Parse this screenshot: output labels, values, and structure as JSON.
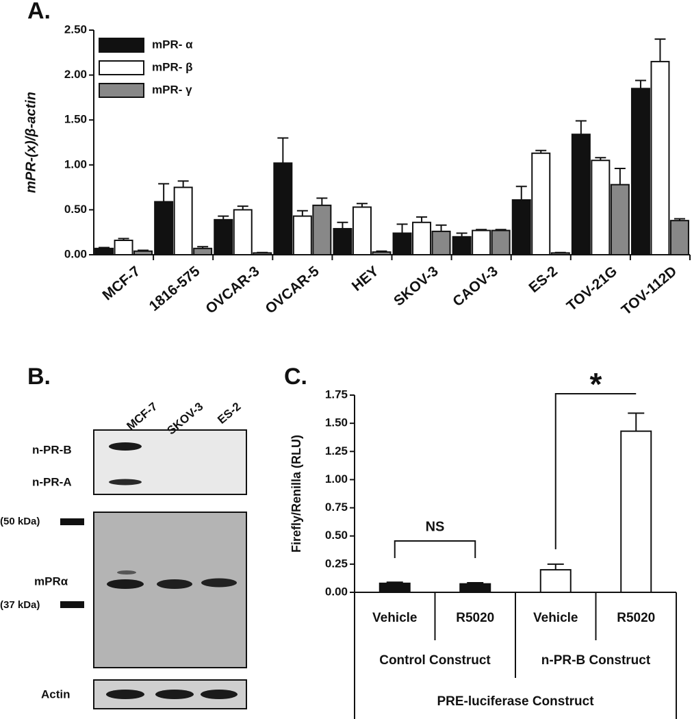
{
  "chart_data": [
    {
      "type": "bar",
      "panel": "A.",
      "y_label": "mPR-(x)/β-actin",
      "categories": [
        "MCF-7",
        "1816-575",
        "OVCAR-3",
        "OVCAR-5",
        "HEY",
        "SKOV-3",
        "CAOV-3",
        "ES-2",
        "TOV-21G",
        "TOV-112D"
      ],
      "series": [
        {
          "name": "mPR- α",
          "color": "#111111",
          "values": [
            0.07,
            0.59,
            0.39,
            1.02,
            0.29,
            0.24,
            0.2,
            0.61,
            1.34,
            1.85
          ],
          "errors": [
            0.01,
            0.2,
            0.04,
            0.28,
            0.07,
            0.1,
            0.04,
            0.15,
            0.15,
            0.09
          ]
        },
        {
          "name": "mPR- β",
          "color": "#ffffff",
          "values": [
            0.16,
            0.75,
            0.5,
            0.43,
            0.53,
            0.36,
            0.27,
            1.13,
            1.05,
            2.15
          ],
          "errors": [
            0.02,
            0.07,
            0.04,
            0.06,
            0.04,
            0.06,
            0.01,
            0.03,
            0.03,
            0.25
          ]
        },
        {
          "name": "mPR- γ",
          "color": "#888888",
          "values": [
            0.04,
            0.07,
            0.02,
            0.55,
            0.03,
            0.26,
            0.27,
            0.02,
            0.78,
            0.38
          ],
          "errors": [
            0.01,
            0.02,
            0.005,
            0.08,
            0.01,
            0.07,
            0.01,
            0.005,
            0.18,
            0.02
          ]
        }
      ],
      "ylim": [
        0,
        2.5
      ],
      "yticks": [
        {
          "value": 0,
          "label": "0.00"
        },
        {
          "value": 0.5,
          "label": "0.50"
        },
        {
          "value": 1,
          "label": "1.00"
        },
        {
          "value": 1.5,
          "label": "1.50"
        },
        {
          "value": 2,
          "label": "2.00"
        },
        {
          "value": 2.5,
          "label": "2.50"
        }
      ],
      "legend": "top-left"
    },
    {
      "type": "bar",
      "panel": "C.",
      "y_label": "Firefly/Renilla (RLU)",
      "categories": [
        "Vehicle",
        "R5020",
        "Vehicle",
        "R5020"
      ],
      "groups": [
        "Control Construct",
        "n-PR-B Construct"
      ],
      "outer_group": "PRE-luciferase Construct",
      "values": [
        0.08,
        0.075,
        0.2,
        1.43
      ],
      "errors": [
        0.01,
        0.01,
        0.05,
        0.16
      ],
      "colors": [
        "#111111",
        "#111111",
        "#ffffff",
        "#ffffff"
      ],
      "annotations": [
        "NS",
        "*"
      ],
      "ylim": [
        0,
        1.75
      ],
      "yticks": [
        {
          "value": 0,
          "label": "0.00"
        },
        {
          "value": 0.25,
          "label": "0.25"
        },
        {
          "value": 0.5,
          "label": "0.50"
        },
        {
          "value": 0.75,
          "label": "0.75"
        },
        {
          "value": 1,
          "label": "1.00"
        },
        {
          "value": 1.25,
          "label": "1.25"
        },
        {
          "value": 1.5,
          "label": "1.50"
        },
        {
          "value": 1.75,
          "label": "1.75"
        }
      ]
    }
  ],
  "western_blot": {
    "panel": "B.",
    "lanes": [
      "MCF-7",
      "SKOV-3",
      "ES-2"
    ],
    "labels": [
      "n-PR-B",
      "n-PR-A",
      "(50 kDa)",
      "mPRα",
      "(37 kDa)",
      "Actin"
    ]
  }
}
